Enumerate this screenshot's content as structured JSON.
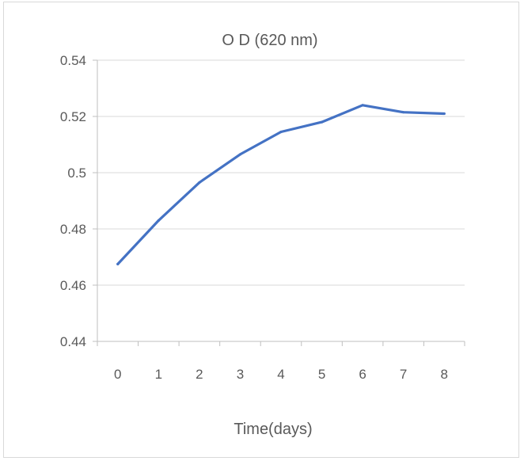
{
  "colors": {
    "series": "#4472c4",
    "grid": "#d9d9d9",
    "axis": "#bfbfbf",
    "text": "#595959",
    "border": "#d9d9d9"
  },
  "chart_data": {
    "type": "line",
    "title": "O D (620 nm)",
    "xlabel": "Time(days)",
    "ylabel": "",
    "categories": [
      "0",
      "1",
      "2",
      "3",
      "4",
      "5",
      "6",
      "7",
      "8"
    ],
    "series": [
      {
        "values": [
          0.4675,
          0.483,
          0.4965,
          0.5065,
          0.5145,
          0.518,
          0.524,
          0.5215,
          0.521
        ]
      }
    ],
    "ylim": [
      0.44,
      0.54
    ],
    "yticks": [
      "0.44",
      "0.46",
      "0.48",
      "0.5",
      "0.52",
      "0.54"
    ],
    "ytick_values": [
      0.44,
      0.46,
      0.48,
      0.5,
      0.52,
      0.54
    ],
    "grid": true,
    "legend": "none"
  }
}
